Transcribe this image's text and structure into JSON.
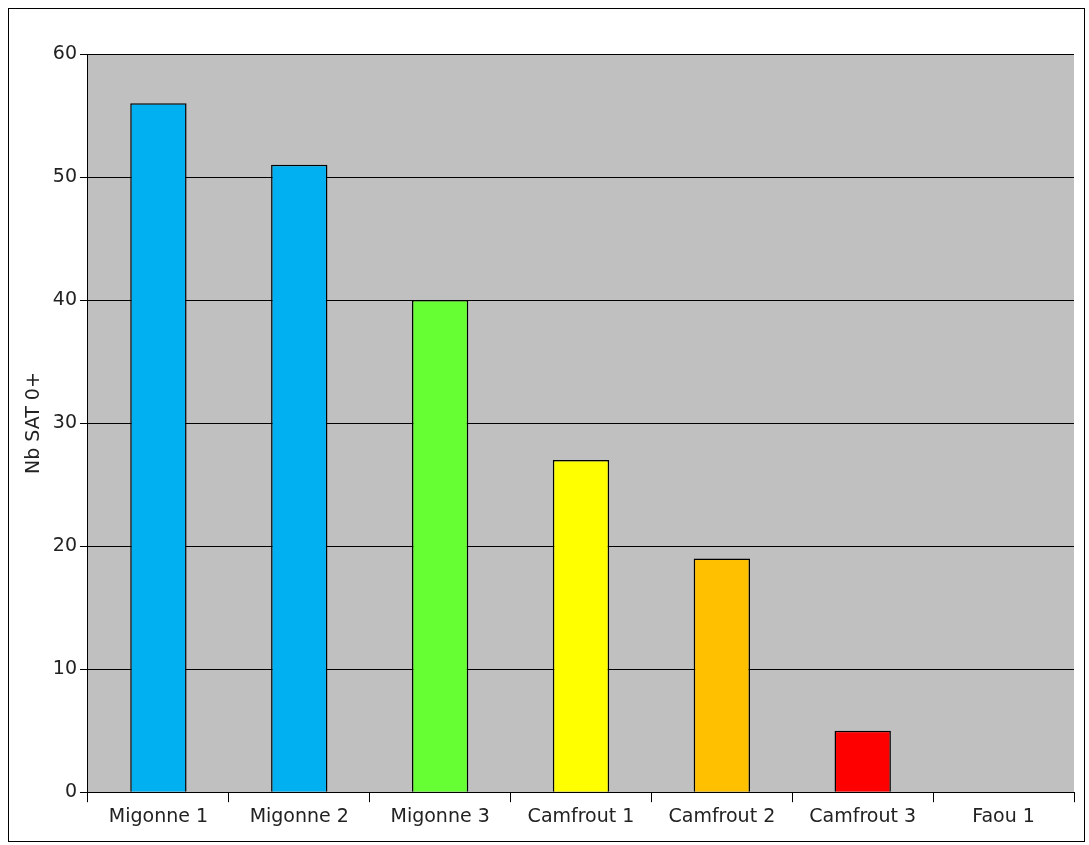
{
  "chart_data": {
    "type": "bar",
    "ylabel": "Nb SAT 0+",
    "categories": [
      "Migonne 1",
      "Migonne 2",
      "Migonne 3",
      "Camfrout 1",
      "Camfrout 2",
      "Camfrout 3",
      "Faou 1"
    ],
    "values": [
      56,
      51,
      40,
      27,
      19,
      5,
      0
    ],
    "colors": [
      "#00b0f0",
      "#00b0f0",
      "#66ff33",
      "#ffff00",
      "#ffc000",
      "#ff0000",
      "#ff0000"
    ],
    "ylim": [
      0,
      60
    ],
    "yticks": [
      0,
      10,
      20,
      30,
      40,
      50,
      60
    ],
    "grid": "y",
    "legend": false
  }
}
